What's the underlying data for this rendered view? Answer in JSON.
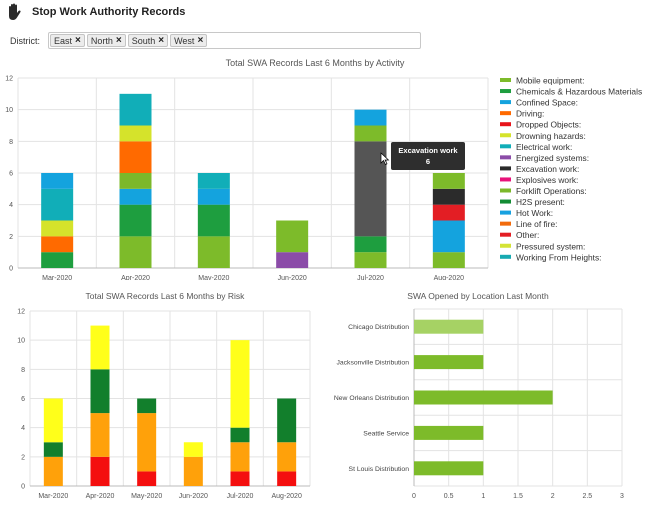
{
  "app": {
    "title": "Stop Work Authority Records",
    "icon": "hand-icon"
  },
  "filter": {
    "label": "District:",
    "chips": [
      {
        "label": "East"
      },
      {
        "label": "North"
      },
      {
        "label": "South"
      },
      {
        "label": "West"
      }
    ]
  },
  "colors": {
    "mobile": "#7dbb2a",
    "chemicals": "#1e9e3f",
    "confined": "#14a3de",
    "driving": "#ff6a00",
    "dropped": "#e8141b",
    "drowning": "#d5e32b",
    "electrical": "#11aeb8",
    "energized": "#8b4ca8",
    "excavation": "#2b2b2b",
    "explosives": "#e8137a",
    "forklift": "#7cb82a",
    "h2s": "#138c34",
    "hotwork": "#18a1e0",
    "lineoffire": "#f26b0c",
    "other": "#e31e24",
    "pressured": "#d4e335",
    "heights": "#18aab1",
    "risk_red": "#f40f0f",
    "risk_orange": "#ffa10a",
    "risk_darkgreen": "#127f2c",
    "risk_yellow": "#ffff1a",
    "location_bar": "#7dbb2a",
    "location_bar_highlight": "#a6d264"
  },
  "tooltip": {
    "title": "Excavation work",
    "value": "6"
  },
  "chart_data": [
    {
      "type": "bar",
      "stacked": true,
      "title": "Total SWA Records Last 6 Months by Activity",
      "categories": [
        "Mar-2020",
        "Apr-2020",
        "May-2020",
        "Jun-2020",
        "Jul-2020",
        "Aug-2020"
      ],
      "ylim": [
        0,
        12
      ],
      "yticks": [
        0,
        2,
        4,
        6,
        8,
        10,
        12
      ],
      "grid": true,
      "legend": "right",
      "legend_entries": [
        {
          "name": "Mobile equipment:",
          "color": "mobile"
        },
        {
          "name": "Chemicals & Hazardous Materials",
          "color": "chemicals"
        },
        {
          "name": "Confined Space:",
          "color": "confined"
        },
        {
          "name": "Driving:",
          "color": "driving"
        },
        {
          "name": "Dropped Objects:",
          "color": "dropped"
        },
        {
          "name": "Drowning hazards:",
          "color": "drowning"
        },
        {
          "name": "Electrical work:",
          "color": "electrical"
        },
        {
          "name": "Energized systems:",
          "color": "energized"
        },
        {
          "name": "Excavation work:",
          "color": "excavation"
        },
        {
          "name": "Explosives work:",
          "color": "explosives"
        },
        {
          "name": "Forklift Operations:",
          "color": "forklift"
        },
        {
          "name": "H2S present:",
          "color": "h2s"
        },
        {
          "name": "Hot Work:",
          "color": "hotwork"
        },
        {
          "name": "Line of fire:",
          "color": "lineoffire"
        },
        {
          "name": "Other:",
          "color": "other"
        },
        {
          "name": "Pressured system:",
          "color": "pressured"
        },
        {
          "name": "Working From Heights:",
          "color": "heights"
        }
      ],
      "stacks": [
        [
          {
            "color": "chemicals",
            "value": 1
          },
          {
            "color": "driving",
            "value": 1
          },
          {
            "color": "drowning",
            "value": 1
          },
          {
            "color": "electrical",
            "value": 2
          },
          {
            "color": "confined",
            "value": 1
          }
        ],
        [
          {
            "color": "mobile",
            "value": 2
          },
          {
            "color": "chemicals",
            "value": 2
          },
          {
            "color": "confined",
            "value": 1
          },
          {
            "color": "forklift",
            "value": 1
          },
          {
            "color": "driving",
            "value": 2
          },
          {
            "color": "drowning",
            "value": 1
          },
          {
            "color": "electrical",
            "value": 2
          }
        ],
        [
          {
            "color": "mobile",
            "value": 2
          },
          {
            "color": "chemicals",
            "value": 2
          },
          {
            "color": "confined",
            "value": 1
          },
          {
            "color": "electrical",
            "value": 1
          }
        ],
        [
          {
            "color": "energized",
            "value": 1
          },
          {
            "color": "mobile",
            "value": 2
          }
        ],
        [
          {
            "color": "mobile",
            "value": 1
          },
          {
            "color": "chemicals",
            "value": 1
          },
          {
            "color": "excavation",
            "value": 6,
            "highlight": true
          },
          {
            "color": "mobile",
            "value": 1
          },
          {
            "color": "confined",
            "value": 1
          }
        ],
        [
          {
            "color": "mobile",
            "value": 1
          },
          {
            "color": "confined",
            "value": 2
          },
          {
            "color": "other",
            "value": 1
          },
          {
            "color": "excavation",
            "value": 1
          },
          {
            "color": "mobile",
            "value": 1
          }
        ]
      ]
    },
    {
      "type": "bar",
      "stacked": true,
      "title": "Total SWA Records Last 6 Months by Risk",
      "categories": [
        "Mar-2020",
        "Apr-2020",
        "May-2020",
        "Jun-2020",
        "Jul-2020",
        "Aug-2020"
      ],
      "ylim": [
        0,
        12
      ],
      "yticks": [
        0,
        2,
        4,
        6,
        8,
        10,
        12
      ],
      "grid": true,
      "stacks": [
        [
          {
            "color": "risk_orange",
            "value": 2
          },
          {
            "color": "risk_darkgreen",
            "value": 1
          },
          {
            "color": "risk_yellow",
            "value": 3
          }
        ],
        [
          {
            "color": "risk_red",
            "value": 2
          },
          {
            "color": "risk_orange",
            "value": 3
          },
          {
            "color": "risk_darkgreen",
            "value": 3
          },
          {
            "color": "risk_yellow",
            "value": 3
          }
        ],
        [
          {
            "color": "risk_red",
            "value": 1
          },
          {
            "color": "risk_orange",
            "value": 4
          },
          {
            "color": "risk_darkgreen",
            "value": 1
          }
        ],
        [
          {
            "color": "risk_orange",
            "value": 2
          },
          {
            "color": "risk_yellow",
            "value": 1
          }
        ],
        [
          {
            "color": "risk_red",
            "value": 1
          },
          {
            "color": "risk_orange",
            "value": 2
          },
          {
            "color": "risk_darkgreen",
            "value": 1
          },
          {
            "color": "risk_yellow",
            "value": 6
          }
        ],
        [
          {
            "color": "risk_red",
            "value": 1
          },
          {
            "color": "risk_orange",
            "value": 2
          },
          {
            "color": "risk_darkgreen",
            "value": 3
          }
        ]
      ]
    },
    {
      "type": "bar",
      "orientation": "horizontal",
      "title": "SWA Opened by Location Last Month",
      "categories": [
        "Chicago Distribution",
        "Jacksonville Distribution",
        "New Orleans Distribution",
        "Seattle Service",
        "St Louis Distribution"
      ],
      "values": [
        1,
        1,
        2,
        1,
        1
      ],
      "highlight_index": 0,
      "xlim": [
        0,
        3
      ],
      "xticks": [
        0,
        0.5,
        1,
        1.5,
        2,
        2.5,
        3
      ],
      "grid": true
    }
  ]
}
